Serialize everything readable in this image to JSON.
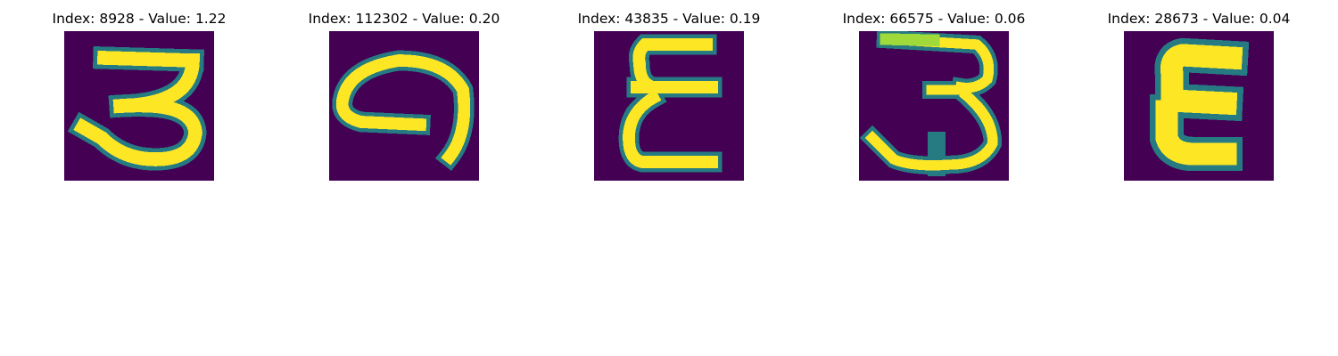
{
  "chart_data": {
    "type": "image-grid",
    "colormap": "viridis",
    "background_color": "#440154",
    "stroke_color": "#fde725",
    "edge_color": "#21918c",
    "panels": [
      {
        "title": "Index: 8928 - Value: 1.22",
        "index": 8928,
        "value": 1.22,
        "digit": "3"
      },
      {
        "title": "Index: 112302 - Value: 0.20",
        "index": 112302,
        "value": 0.2,
        "digit": "9"
      },
      {
        "title": "Index: 43835 - Value: 0.19",
        "index": 43835,
        "value": 0.19,
        "digit": "E"
      },
      {
        "title": "Index: 66575 - Value: 0.06",
        "index": 66575,
        "value": 0.06,
        "digit": "3"
      },
      {
        "title": "Index: 28673 - Value: 0.04",
        "index": 28673,
        "value": 0.04,
        "digit": "E"
      }
    ]
  }
}
